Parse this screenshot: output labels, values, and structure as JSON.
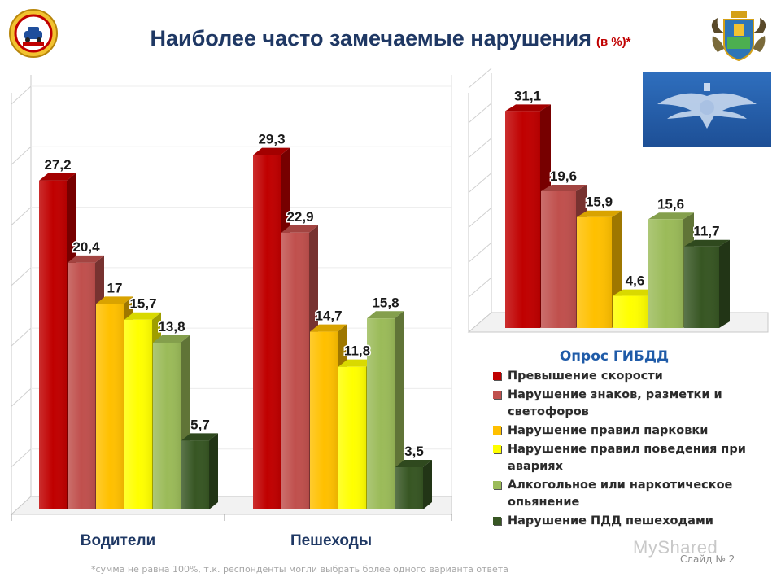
{
  "slide": {
    "title": "Наиболее часто замечаемые нарушения",
    "title_suffix": "(в %)*",
    "footnote": "*сумма не равна 100%, т.к. респонденты могли выбрать более одного варианта ответа",
    "slide_number": "Слайд № 2",
    "watermark": "MyShared"
  },
  "legend": {
    "title": "Опрос ГИБДД",
    "items": [
      {
        "label": "Превышение скорости",
        "color": "#c00000"
      },
      {
        "label": "Нарушение знаков, разметки и светофоров",
        "color": "#c0504d"
      },
      {
        "label": "Нарушение правил парковки",
        "color": "#ffc000"
      },
      {
        "label": "Нарушение правил поведения при авариях",
        "color": "#ffff00"
      },
      {
        "label": "Алкогольное или наркотическое опьянение",
        "color": "#9bbb59"
      },
      {
        "label": "Нарушение ПДД пешеходами",
        "color": "#375623"
      }
    ]
  },
  "chart_data": [
    {
      "type": "bar",
      "categories": [
        "Водители",
        "Пешеходы"
      ],
      "series": [
        {
          "name": "Превышение скорости",
          "values": [
            27.2,
            29.3
          ],
          "labels": [
            "27,2",
            "29,3"
          ],
          "color": "#c00000"
        },
        {
          "name": "Нарушение знаков, разметки и светофоров",
          "values": [
            20.4,
            22.9
          ],
          "labels": [
            "20,4",
            "22,9"
          ],
          "color": "#c0504d"
        },
        {
          "name": "Нарушение правил парковки",
          "values": [
            17,
            14.7
          ],
          "labels": [
            "17",
            "14,7"
          ],
          "color": "#ffc000"
        },
        {
          "name": "Нарушение правил поведения при авариях",
          "values": [
            15.7,
            11.8
          ],
          "labels": [
            "15,7",
            "11,8"
          ],
          "color": "#ffff00"
        },
        {
          "name": "Алкогольное или наркотическое опьянение",
          "values": [
            13.8,
            15.8
          ],
          "labels": [
            "13,8",
            "15,8"
          ],
          "color": "#9bbb59"
        },
        {
          "name": "Нарушение ПДД пешеходами",
          "values": [
            5.7,
            3.5
          ],
          "labels": [
            "5,7",
            "3,5"
          ],
          "color": "#375623"
        }
      ],
      "ylim": [
        0,
        35
      ],
      "grid": true
    },
    {
      "type": "bar",
      "title": "Опрос ГИБДД",
      "series": [
        {
          "name": "Превышение скорости",
          "values": [
            31.1
          ],
          "labels": [
            "31,1"
          ],
          "color": "#c00000"
        },
        {
          "name": "Нарушение знаков, разметки и светофоров",
          "values": [
            19.6
          ],
          "labels": [
            "19,6"
          ],
          "color": "#c0504d"
        },
        {
          "name": "Нарушение правил парковки",
          "values": [
            15.9
          ],
          "labels": [
            "15,9"
          ],
          "color": "#ffc000"
        },
        {
          "name": "Нарушение правил поведения при авариях",
          "values": [
            4.6
          ],
          "labels": [
            "4,6"
          ],
          "color": "#ffff00"
        },
        {
          "name": "Алкогольное или наркотическое опьянение",
          "values": [
            15.6
          ],
          "labels": [
            "15,6"
          ],
          "color": "#9bbb59"
        },
        {
          "name": "Нарушение ПДД пешеходами",
          "values": [
            11.7
          ],
          "labels": [
            "11,7"
          ],
          "color": "#375623"
        }
      ],
      "ylim": [
        0,
        35
      ],
      "grid": true
    }
  ]
}
